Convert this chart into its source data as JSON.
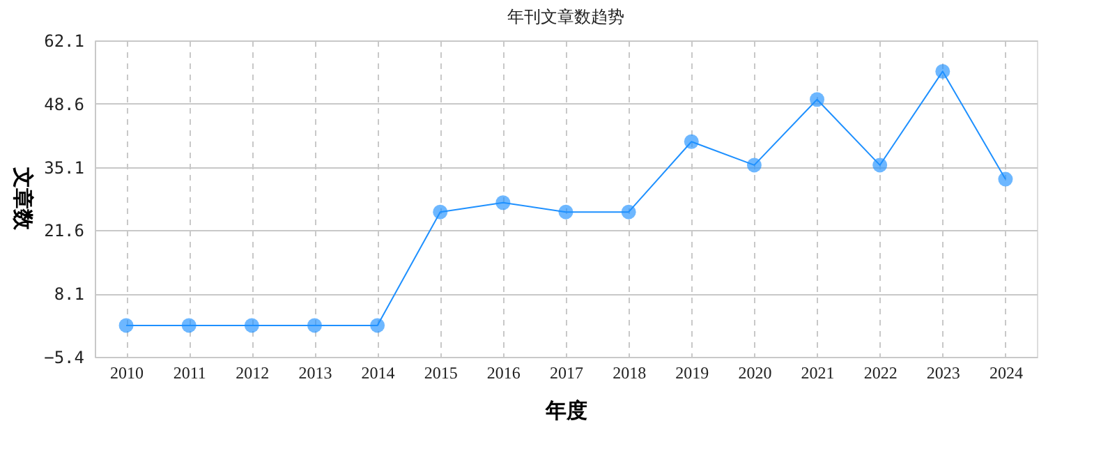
{
  "chart_data": {
    "type": "line",
    "title": "年刊文章数趋势",
    "xlabel": "年度",
    "ylabel": "文章数",
    "categories": [
      "2010",
      "2011",
      "2012",
      "2013",
      "2014",
      "2015",
      "2016",
      "2017",
      "2018",
      "2019",
      "2020",
      "2021",
      "2022",
      "2023",
      "2024"
    ],
    "series": [
      {
        "color": "#1e90ff",
        "values": [
          1.3,
          1.3,
          1.3,
          1.3,
          1.3,
          25.5,
          27.5,
          25.5,
          25.5,
          40.5,
          35.5,
          49.5,
          35.5,
          55.5,
          32.5
        ]
      }
    ],
    "ylim": [
      -5.4,
      62.1
    ],
    "yticks": [
      -5.4,
      8.1,
      21.6,
      35.1,
      48.6,
      62.1
    ],
    "grid": true,
    "marker": "circle",
    "line_style": "solid",
    "legend": false
  }
}
